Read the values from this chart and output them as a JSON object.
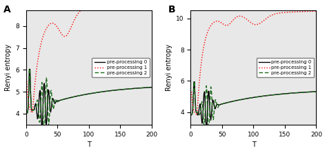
{
  "panel_A": {
    "label": "A",
    "ylabel": "Renyi entropy",
    "xlabel": "T",
    "ylim": [
      3.5,
      8.7
    ],
    "xlim": [
      0,
      200
    ],
    "yticks": [
      4,
      5,
      6,
      7,
      8
    ],
    "xticks": [
      0,
      50,
      100,
      150,
      200
    ]
  },
  "panel_B": {
    "label": "B",
    "ylabel": "Renyi entropy",
    "xlabel": "T",
    "ylim": [
      3.2,
      10.5
    ],
    "xlim": [
      0,
      200
    ],
    "yticks": [
      4,
      6,
      8,
      10
    ],
    "xticks": [
      0,
      50,
      100,
      150,
      200
    ]
  },
  "legend_entries": [
    "pre-processing 0",
    "pre-processing 1",
    "pre-processing 2"
  ],
  "colors": {
    "pp0": "black",
    "pp1": "red",
    "pp2": "#1a6b1a"
  },
  "background_color": "#e8e8e8"
}
